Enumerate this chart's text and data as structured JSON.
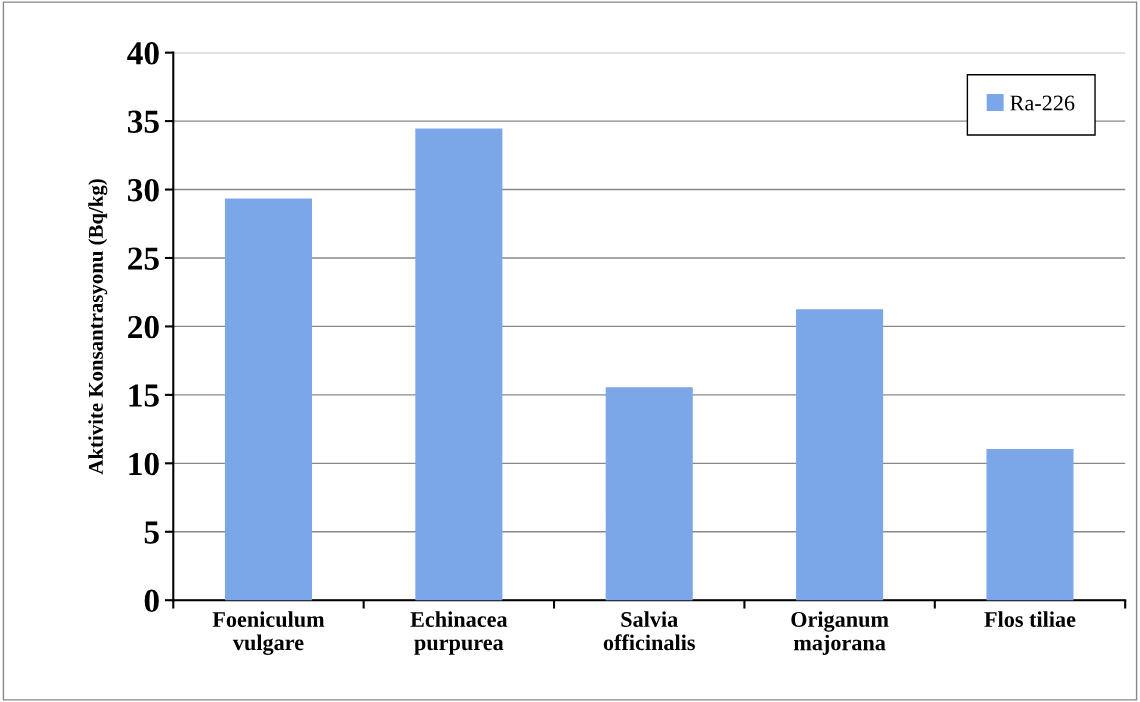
{
  "chart_data": {
    "type": "bar",
    "ylabel": "Aktivite Konsantrasyonu (Bq/kg)",
    "categories": [
      "Foeniculum\nvulgare",
      "Echinacea\npurpurea",
      "Salvia\nofficinalis",
      "Origanum\nmajorana",
      "Flos tiliae"
    ],
    "series": [
      {
        "name": "Ra-226",
        "color": "#7ba7e8",
        "values": [
          29.3,
          34.4,
          15.5,
          21.2,
          11.0
        ]
      }
    ],
    "ylim": [
      0,
      40
    ],
    "yticks": [
      0,
      5,
      10,
      15,
      20,
      25,
      30,
      35,
      40
    ],
    "grid": "y",
    "legend": "top right"
  }
}
